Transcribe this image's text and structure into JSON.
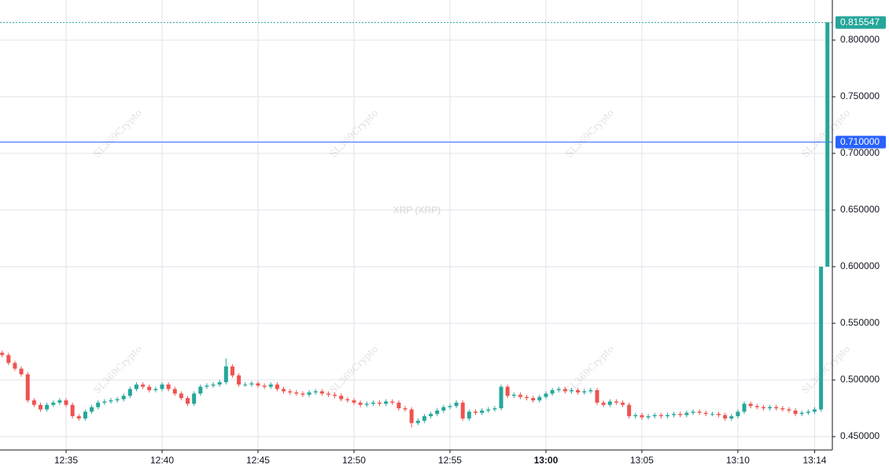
{
  "chart_data": {
    "type": "candlestick",
    "watermark": "XRP (XRP)",
    "brand": "SL369Crypto",
    "up_color": "#26a69a",
    "down_color": "#ef5350",
    "grid": true,
    "xlim": [
      4.67,
      134.77
    ],
    "ylim": [
      0.4382,
      0.8354
    ],
    "xticks": [
      {
        "value": 15,
        "label": "12:35"
      },
      {
        "value": 30,
        "label": "12:40"
      },
      {
        "value": 45,
        "label": "12:45"
      },
      {
        "value": 60,
        "label": "12:50"
      },
      {
        "value": 75,
        "label": "12:55"
      },
      {
        "value": 90,
        "label": "13:00",
        "bold": true
      },
      {
        "value": 105,
        "label": "13:05"
      },
      {
        "value": 120,
        "label": "13:10"
      },
      {
        "value": 132,
        "label": "13:14"
      }
    ],
    "yticks": [
      {
        "value": 0.45,
        "label": "0.450000"
      },
      {
        "value": 0.5,
        "label": "0.500000"
      },
      {
        "value": 0.55,
        "label": "0.550000"
      },
      {
        "value": 0.6,
        "label": "0.600000"
      },
      {
        "value": 0.65,
        "label": "0.650000"
      },
      {
        "value": 0.7,
        "label": "0.700000"
      },
      {
        "value": 0.75,
        "label": "0.750000"
      },
      {
        "value": 0.8,
        "label": "0.800000"
      }
    ],
    "last_price": {
      "value": 0.815547,
      "label": "0.815547",
      "color": "#26a69a"
    },
    "price_line": {
      "value": 0.71,
      "label": "0.710000",
      "color": "#2962ff"
    },
    "x": [
      5,
      6,
      7,
      8,
      9,
      10,
      11,
      12,
      13,
      14,
      15,
      16,
      17,
      18,
      19,
      20,
      21,
      22,
      23,
      24,
      25,
      26,
      27,
      28,
      29,
      30,
      31,
      32,
      33,
      34,
      35,
      36,
      37,
      38,
      39,
      40,
      41,
      42,
      43,
      44,
      45,
      46,
      47,
      48,
      49,
      50,
      51,
      52,
      53,
      54,
      55,
      56,
      57,
      58,
      59,
      60,
      61,
      62,
      63,
      64,
      65,
      66,
      67,
      68,
      69,
      70,
      71,
      72,
      73,
      74,
      75,
      76,
      77,
      78,
      79,
      80,
      81,
      82,
      83,
      84,
      85,
      86,
      87,
      88,
      89,
      90,
      91,
      92,
      93,
      94,
      95,
      96,
      97,
      98,
      99,
      100,
      101,
      102,
      103,
      104,
      105,
      106,
      107,
      108,
      109,
      110,
      111,
      112,
      113,
      114,
      115,
      116,
      117,
      118,
      119,
      120,
      121,
      122,
      123,
      124,
      125,
      126,
      127,
      128,
      129,
      130,
      131,
      132,
      133,
      134
    ],
    "candles": [
      [
        0.524,
        0.526,
        0.52,
        0.522
      ],
      [
        0.522,
        0.524,
        0.513,
        0.515
      ],
      [
        0.515,
        0.517,
        0.508,
        0.51
      ],
      [
        0.51,
        0.512,
        0.503,
        0.505
      ],
      [
        0.505,
        0.507,
        0.48,
        0.482
      ],
      [
        0.482,
        0.484,
        0.476,
        0.478
      ],
      [
        0.478,
        0.48,
        0.472,
        0.474
      ],
      [
        0.474,
        0.48,
        0.472,
        0.478
      ],
      [
        0.478,
        0.482,
        0.476,
        0.48
      ],
      [
        0.48,
        0.484,
        0.478,
        0.482
      ],
      [
        0.482,
        0.484,
        0.476,
        0.478
      ],
      [
        0.478,
        0.48,
        0.466,
        0.468
      ],
      [
        0.468,
        0.47,
        0.464,
        0.466
      ],
      [
        0.466,
        0.474,
        0.464,
        0.472
      ],
      [
        0.472,
        0.478,
        0.47,
        0.476
      ],
      [
        0.476,
        0.482,
        0.474,
        0.48
      ],
      [
        0.48,
        0.483,
        0.478,
        0.481
      ],
      [
        0.481,
        0.484,
        0.479,
        0.482
      ],
      [
        0.482,
        0.485,
        0.48,
        0.483
      ],
      [
        0.483,
        0.488,
        0.481,
        0.486
      ],
      [
        0.486,
        0.494,
        0.484,
        0.492
      ],
      [
        0.492,
        0.498,
        0.49,
        0.496
      ],
      [
        0.496,
        0.498,
        0.492,
        0.494
      ],
      [
        0.494,
        0.496,
        0.489,
        0.491
      ],
      [
        0.491,
        0.494,
        0.489,
        0.492
      ],
      [
        0.492,
        0.498,
        0.49,
        0.496
      ],
      [
        0.496,
        0.498,
        0.49,
        0.492
      ],
      [
        0.492,
        0.494,
        0.486,
        0.488
      ],
      [
        0.488,
        0.49,
        0.482,
        0.484
      ],
      [
        0.484,
        0.486,
        0.477,
        0.479
      ],
      [
        0.479,
        0.49,
        0.477,
        0.488
      ],
      [
        0.488,
        0.496,
        0.486,
        0.494
      ],
      [
        0.494,
        0.497,
        0.492,
        0.495
      ],
      [
        0.495,
        0.498,
        0.493,
        0.496
      ],
      [
        0.496,
        0.5,
        0.494,
        0.498
      ],
      [
        0.498,
        0.519,
        0.496,
        0.512
      ],
      [
        0.512,
        0.514,
        0.502,
        0.504
      ],
      [
        0.504,
        0.506,
        0.494,
        0.496
      ],
      [
        0.496,
        0.498,
        0.494,
        0.496
      ],
      [
        0.496,
        0.499,
        0.494,
        0.497
      ],
      [
        0.497,
        0.499,
        0.493,
        0.495
      ],
      [
        0.495,
        0.497,
        0.492,
        0.494
      ],
      [
        0.494,
        0.498,
        0.492,
        0.496
      ],
      [
        0.496,
        0.498,
        0.49,
        0.492
      ],
      [
        0.492,
        0.494,
        0.488,
        0.49
      ],
      [
        0.49,
        0.492,
        0.487,
        0.489
      ],
      [
        0.489,
        0.491,
        0.486,
        0.488
      ],
      [
        0.488,
        0.49,
        0.485,
        0.487
      ],
      [
        0.487,
        0.491,
        0.485,
        0.489
      ],
      [
        0.489,
        0.492,
        0.487,
        0.49
      ],
      [
        0.49,
        0.492,
        0.486,
        0.488
      ],
      [
        0.488,
        0.49,
        0.485,
        0.487
      ],
      [
        0.487,
        0.489,
        0.484,
        0.486
      ],
      [
        0.486,
        0.488,
        0.481,
        0.483
      ],
      [
        0.483,
        0.485,
        0.48,
        0.482
      ],
      [
        0.482,
        0.484,
        0.478,
        0.48
      ],
      [
        0.48,
        0.482,
        0.476,
        0.478
      ],
      [
        0.478,
        0.481,
        0.476,
        0.479
      ],
      [
        0.479,
        0.482,
        0.477,
        0.48
      ],
      [
        0.48,
        0.482,
        0.477,
        0.479
      ],
      [
        0.479,
        0.483,
        0.477,
        0.481
      ],
      [
        0.481,
        0.483,
        0.478,
        0.48
      ],
      [
        0.48,
        0.482,
        0.473,
        0.475
      ],
      [
        0.475,
        0.477,
        0.472,
        0.474
      ],
      [
        0.474,
        0.476,
        0.458,
        0.462
      ],
      [
        0.462,
        0.466,
        0.46,
        0.464
      ],
      [
        0.464,
        0.47,
        0.462,
        0.468
      ],
      [
        0.468,
        0.472,
        0.466,
        0.47
      ],
      [
        0.47,
        0.475,
        0.468,
        0.473
      ],
      [
        0.473,
        0.478,
        0.471,
        0.476
      ],
      [
        0.476,
        0.479,
        0.474,
        0.477
      ],
      [
        0.477,
        0.482,
        0.475,
        0.48
      ],
      [
        0.48,
        0.482,
        0.464,
        0.466
      ],
      [
        0.466,
        0.474,
        0.464,
        0.472
      ],
      [
        0.472,
        0.474,
        0.469,
        0.471
      ],
      [
        0.471,
        0.475,
        0.469,
        0.473
      ],
      [
        0.473,
        0.476,
        0.471,
        0.474
      ],
      [
        0.474,
        0.477,
        0.472,
        0.475
      ],
      [
        0.475,
        0.496,
        0.473,
        0.494
      ],
      [
        0.494,
        0.496,
        0.484,
        0.486
      ],
      [
        0.486,
        0.489,
        0.484,
        0.487
      ],
      [
        0.487,
        0.489,
        0.483,
        0.485
      ],
      [
        0.485,
        0.487,
        0.482,
        0.484
      ],
      [
        0.484,
        0.486,
        0.48,
        0.482
      ],
      [
        0.482,
        0.487,
        0.48,
        0.485
      ],
      [
        0.485,
        0.49,
        0.483,
        0.488
      ],
      [
        0.488,
        0.493,
        0.486,
        0.491
      ],
      [
        0.491,
        0.494,
        0.489,
        0.492
      ],
      [
        0.492,
        0.494,
        0.488,
        0.49
      ],
      [
        0.49,
        0.493,
        0.488,
        0.491
      ],
      [
        0.491,
        0.493,
        0.487,
        0.489
      ],
      [
        0.489,
        0.492,
        0.487,
        0.49
      ],
      [
        0.49,
        0.493,
        0.488,
        0.491
      ],
      [
        0.491,
        0.493,
        0.478,
        0.48
      ],
      [
        0.48,
        0.482,
        0.476,
        0.478
      ],
      [
        0.478,
        0.483,
        0.476,
        0.481
      ],
      [
        0.481,
        0.483,
        0.478,
        0.48
      ],
      [
        0.48,
        0.482,
        0.476,
        0.478
      ],
      [
        0.478,
        0.48,
        0.466,
        0.468
      ],
      [
        0.468,
        0.471,
        0.466,
        0.469
      ],
      [
        0.469,
        0.471,
        0.465,
        0.467
      ],
      [
        0.467,
        0.47,
        0.465,
        0.468
      ],
      [
        0.468,
        0.471,
        0.466,
        0.469
      ],
      [
        0.469,
        0.471,
        0.466,
        0.468
      ],
      [
        0.468,
        0.471,
        0.466,
        0.469
      ],
      [
        0.469,
        0.472,
        0.467,
        0.47
      ],
      [
        0.47,
        0.472,
        0.467,
        0.469
      ],
      [
        0.469,
        0.473,
        0.467,
        0.471
      ],
      [
        0.471,
        0.474,
        0.469,
        0.472
      ],
      [
        0.472,
        0.474,
        0.469,
        0.471
      ],
      [
        0.471,
        0.473,
        0.468,
        0.47
      ],
      [
        0.47,
        0.472,
        0.468,
        0.47
      ],
      [
        0.47,
        0.472,
        0.467,
        0.469
      ],
      [
        0.469,
        0.471,
        0.464,
        0.466
      ],
      [
        0.466,
        0.47,
        0.464,
        0.468
      ],
      [
        0.468,
        0.474,
        0.466,
        0.472
      ],
      [
        0.472,
        0.481,
        0.47,
        0.479
      ],
      [
        0.479,
        0.481,
        0.475,
        0.477
      ],
      [
        0.477,
        0.479,
        0.474,
        0.476
      ],
      [
        0.476,
        0.478,
        0.473,
        0.475
      ],
      [
        0.475,
        0.478,
        0.473,
        0.476
      ],
      [
        0.476,
        0.478,
        0.473,
        0.475
      ],
      [
        0.475,
        0.477,
        0.472,
        0.474
      ],
      [
        0.474,
        0.476,
        0.471,
        0.473
      ],
      [
        0.473,
        0.475,
        0.468,
        0.47
      ],
      [
        0.47,
        0.473,
        0.468,
        0.471
      ],
      [
        0.471,
        0.474,
        0.469,
        0.472
      ],
      [
        0.472,
        0.476,
        0.47,
        0.474
      ],
      [
        0.474,
        0.6,
        0.472,
        0.6
      ],
      [
        0.6,
        0.815547,
        0.6,
        0.815547
      ]
    ]
  }
}
